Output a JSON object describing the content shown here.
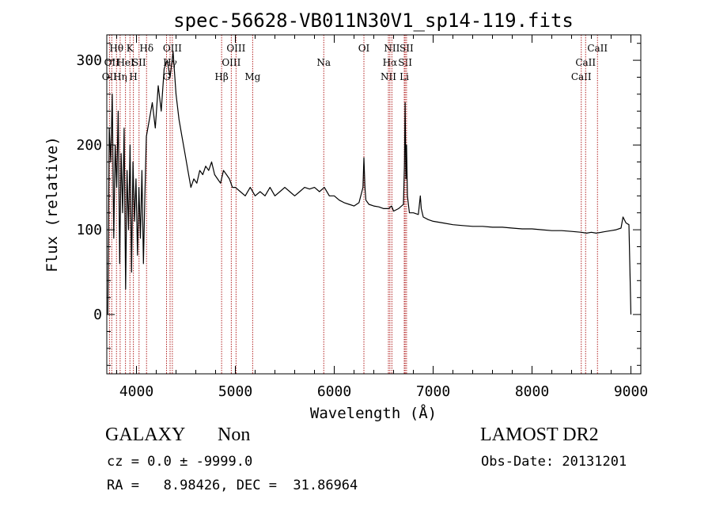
{
  "chart_data": {
    "type": "line",
    "title": "spec-56628-VB011N30V1_sp14-119.fits",
    "xlabel": "Wavelength (Å)",
    "ylabel": "Flux (relative)",
    "xlim": [
      3700,
      9100
    ],
    "ylim": [
      -70,
      330
    ],
    "x_ticks": [
      4000,
      5000,
      6000,
      7000,
      8000,
      9000
    ],
    "y_ticks": [
      0,
      100,
      200,
      300
    ],
    "grid": false,
    "line_color": "#000000",
    "marker_color": "#b22222",
    "series": [
      {
        "x": [
          3710,
          3725,
          3740,
          3755,
          3770,
          3785,
          3800,
          3815,
          3830,
          3845,
          3860,
          3875,
          3890,
          3905,
          3920,
          3935,
          3950,
          3965,
          3980,
          3995,
          4010,
          4025,
          4040,
          4055,
          4070,
          4085,
          4100,
          4130,
          4160,
          4190,
          4220,
          4250,
          4280,
          4310,
          4340,
          4370,
          4400,
          4430,
          4460,
          4490,
          4520,
          4550,
          4580,
          4610,
          4640,
          4670,
          4700,
          4730,
          4760,
          4790,
          4820,
          4850,
          4880,
          4910,
          4940,
          4970,
          5000,
          5050,
          5100,
          5150,
          5200,
          5250,
          5300,
          5350,
          5400,
          5450,
          5500,
          5550,
          5600,
          5650,
          5700,
          5750,
          5800,
          5850,
          5900,
          5950,
          6000,
          6050,
          6100,
          6150,
          6200,
          6250,
          6290,
          6300,
          6310,
          6320,
          6350,
          6400,
          6450,
          6500,
          6550,
          6580,
          6600,
          6650,
          6700,
          6710,
          6717,
          6725,
          6731,
          6740,
          6760,
          6800,
          6850,
          6870,
          6880,
          6900,
          6950,
          7000,
          7100,
          7200,
          7300,
          7400,
          7500,
          7600,
          7700,
          7800,
          7900,
          8000,
          8100,
          8200,
          8300,
          8400,
          8500,
          8550,
          8600,
          8650,
          8700,
          8750,
          8800,
          8850,
          8900,
          8920,
          8950,
          8980,
          9000
        ],
        "values": [
          0,
          220,
          180,
          260,
          90,
          200,
          150,
          240,
          60,
          190,
          120,
          220,
          30,
          170,
          100,
          200,
          50,
          180,
          110,
          160,
          70,
          150,
          90,
          170,
          60,
          140,
          210,
          230,
          250,
          220,
          270,
          240,
          290,
          300,
          280,
          310,
          260,
          230,
          210,
          190,
          170,
          150,
          160,
          155,
          170,
          165,
          175,
          170,
          180,
          165,
          160,
          155,
          170,
          165,
          160,
          150,
          150,
          145,
          140,
          150,
          140,
          145,
          140,
          150,
          140,
          145,
          150,
          145,
          140,
          145,
          150,
          148,
          150,
          145,
          150,
          140,
          140,
          135,
          132,
          130,
          128,
          132,
          150,
          185,
          150,
          135,
          130,
          128,
          127,
          125,
          125,
          128,
          122,
          125,
          130,
          180,
          250,
          160,
          200,
          140,
          120,
          120,
          118,
          140,
          125,
          115,
          112,
          110,
          108,
          106,
          105,
          104,
          104,
          103,
          103,
          102,
          101,
          101,
          100,
          99,
          99,
          98,
          97,
          96,
          97,
          96,
          97,
          98,
          99,
          100,
          102,
          115,
          108,
          106,
          0
        ]
      }
    ],
    "lines": [
      {
        "wl": 3727,
        "label": "OII",
        "row": 2
      },
      {
        "wl": 3750,
        "label": "OII",
        "row": 1
      },
      {
        "wl": 3798,
        "label": "Hθ",
        "row": 0
      },
      {
        "wl": 3835,
        "label": "Hη",
        "row": 2
      },
      {
        "wl": 3889,
        "label": "HeI",
        "row": 1
      },
      {
        "wl": 3934,
        "label": "K",
        "row": 0
      },
      {
        "wl": 3969,
        "label": "H",
        "row": 2
      },
      {
        "wl": 4026,
        "label": "SII",
        "row": 1
      },
      {
        "wl": 4102,
        "label": "Hδ",
        "row": 0
      },
      {
        "wl": 4304,
        "label": "G",
        "row": 2
      },
      {
        "wl": 4340,
        "label": "Hγ",
        "row": 1
      },
      {
        "wl": 4363,
        "label": "OIII",
        "row": 0
      },
      {
        "wl": 4861,
        "label": "Hβ",
        "row": 2
      },
      {
        "wl": 4959,
        "label": "OIII",
        "row": 1
      },
      {
        "wl": 5007,
        "label": "OIII",
        "row": 0
      },
      {
        "wl": 5175,
        "label": "Mg",
        "row": 2
      },
      {
        "wl": 5894,
        "label": "Na",
        "row": 1
      },
      {
        "wl": 6300,
        "label": "OI",
        "row": 0
      },
      {
        "wl": 6548,
        "label": "NII",
        "row": 2
      },
      {
        "wl": 6563,
        "label": "Hα",
        "row": 1
      },
      {
        "wl": 6583,
        "label": "NII",
        "row": 0
      },
      {
        "wl": 6708,
        "label": "Li",
        "row": 2
      },
      {
        "wl": 6717,
        "label": "SII",
        "row": 1
      },
      {
        "wl": 6731,
        "label": "SII",
        "row": 0
      },
      {
        "wl": 8498,
        "label": "CaII",
        "row": 2
      },
      {
        "wl": 8542,
        "label": "CaII",
        "row": 1
      },
      {
        "wl": 8662,
        "label": "CaII",
        "row": 0
      }
    ]
  },
  "info": {
    "object_type": "GALAXY",
    "subclass": "Non",
    "survey": "LAMOST DR2",
    "cz": "cz = 0.0 ± -9999.0",
    "obs_date": "Obs-Date: 20131201",
    "radec": "RA =   8.98426, DEC =  31.86964"
  }
}
